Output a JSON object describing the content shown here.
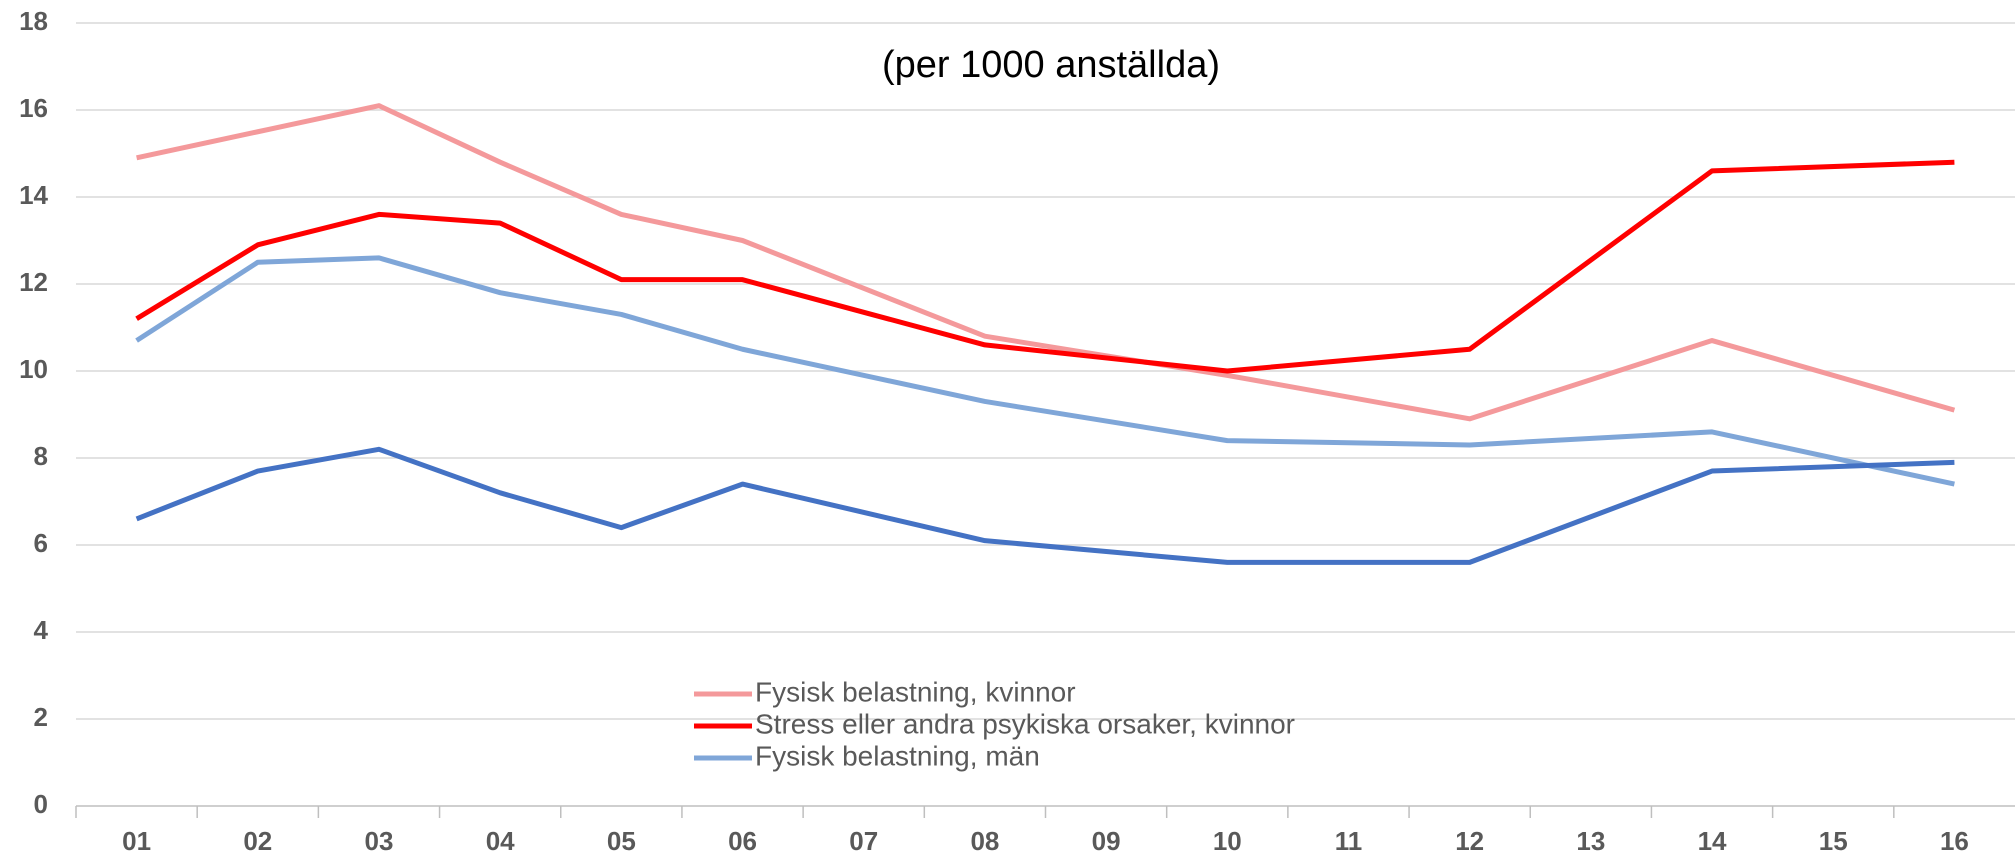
{
  "chart_data": {
    "type": "line",
    "title": "(per 1000 anställda)",
    "xlim": [
      0.5,
      16.5
    ],
    "xticks": [
      {
        "value": 1,
        "label": "01"
      },
      {
        "value": 2,
        "label": "02"
      },
      {
        "value": 3,
        "label": "03"
      },
      {
        "value": 4,
        "label": "04"
      },
      {
        "value": 5,
        "label": "05"
      },
      {
        "value": 6,
        "label": "06"
      },
      {
        "value": 7,
        "label": "07"
      },
      {
        "value": 8,
        "label": "08"
      },
      {
        "value": 9,
        "label": "09"
      },
      {
        "value": 10,
        "label": "10"
      },
      {
        "value": 11,
        "label": "11"
      },
      {
        "value": 12,
        "label": "12"
      },
      {
        "value": 13,
        "label": "13"
      },
      {
        "value": 14,
        "label": "14"
      },
      {
        "value": 15,
        "label": "15"
      },
      {
        "value": 16,
        "label": "16"
      }
    ],
    "ylim": [
      0,
      18
    ],
    "yticks": [
      0,
      2,
      4,
      6,
      8,
      10,
      12,
      14,
      16,
      18
    ],
    "grid": true,
    "series": [
      {
        "name": "Fysisk belastning, kvinnor",
        "color": "#f4999b",
        "x": [
          1,
          2,
          3,
          4,
          5,
          6,
          8,
          10,
          12,
          14,
          16
        ],
        "values": [
          14.9,
          15.5,
          16.1,
          14.8,
          13.6,
          13.0,
          10.8,
          9.9,
          8.9,
          10.7,
          9.1
        ]
      },
      {
        "name": "Stress eller andra psykiska orsaker, kvinnor",
        "color": "#ff0000",
        "x": [
          1,
          2,
          3,
          4,
          5,
          6,
          8,
          10,
          12,
          14,
          16
        ],
        "values": [
          11.2,
          12.9,
          13.6,
          13.4,
          12.1,
          12.1,
          10.6,
          10.0,
          10.5,
          14.6,
          14.8
        ]
      },
      {
        "name": "Fysisk belastning, män",
        "color": "#7fa6d8",
        "x": [
          1,
          2,
          3,
          4,
          5,
          6,
          8,
          10,
          12,
          14,
          16
        ],
        "values": [
          10.7,
          12.5,
          12.6,
          11.8,
          11.3,
          10.5,
          9.3,
          8.4,
          8.3,
          8.6,
          7.4
        ]
      },
      {
        "color": "#4472c4",
        "x": [
          1,
          2,
          3,
          4,
          5,
          6,
          8,
          10,
          12,
          14,
          16
        ],
        "values": [
          6.6,
          7.7,
          8.2,
          7.2,
          6.4,
          7.4,
          6.1,
          5.6,
          5.6,
          7.7,
          7.9
        ]
      }
    ]
  }
}
